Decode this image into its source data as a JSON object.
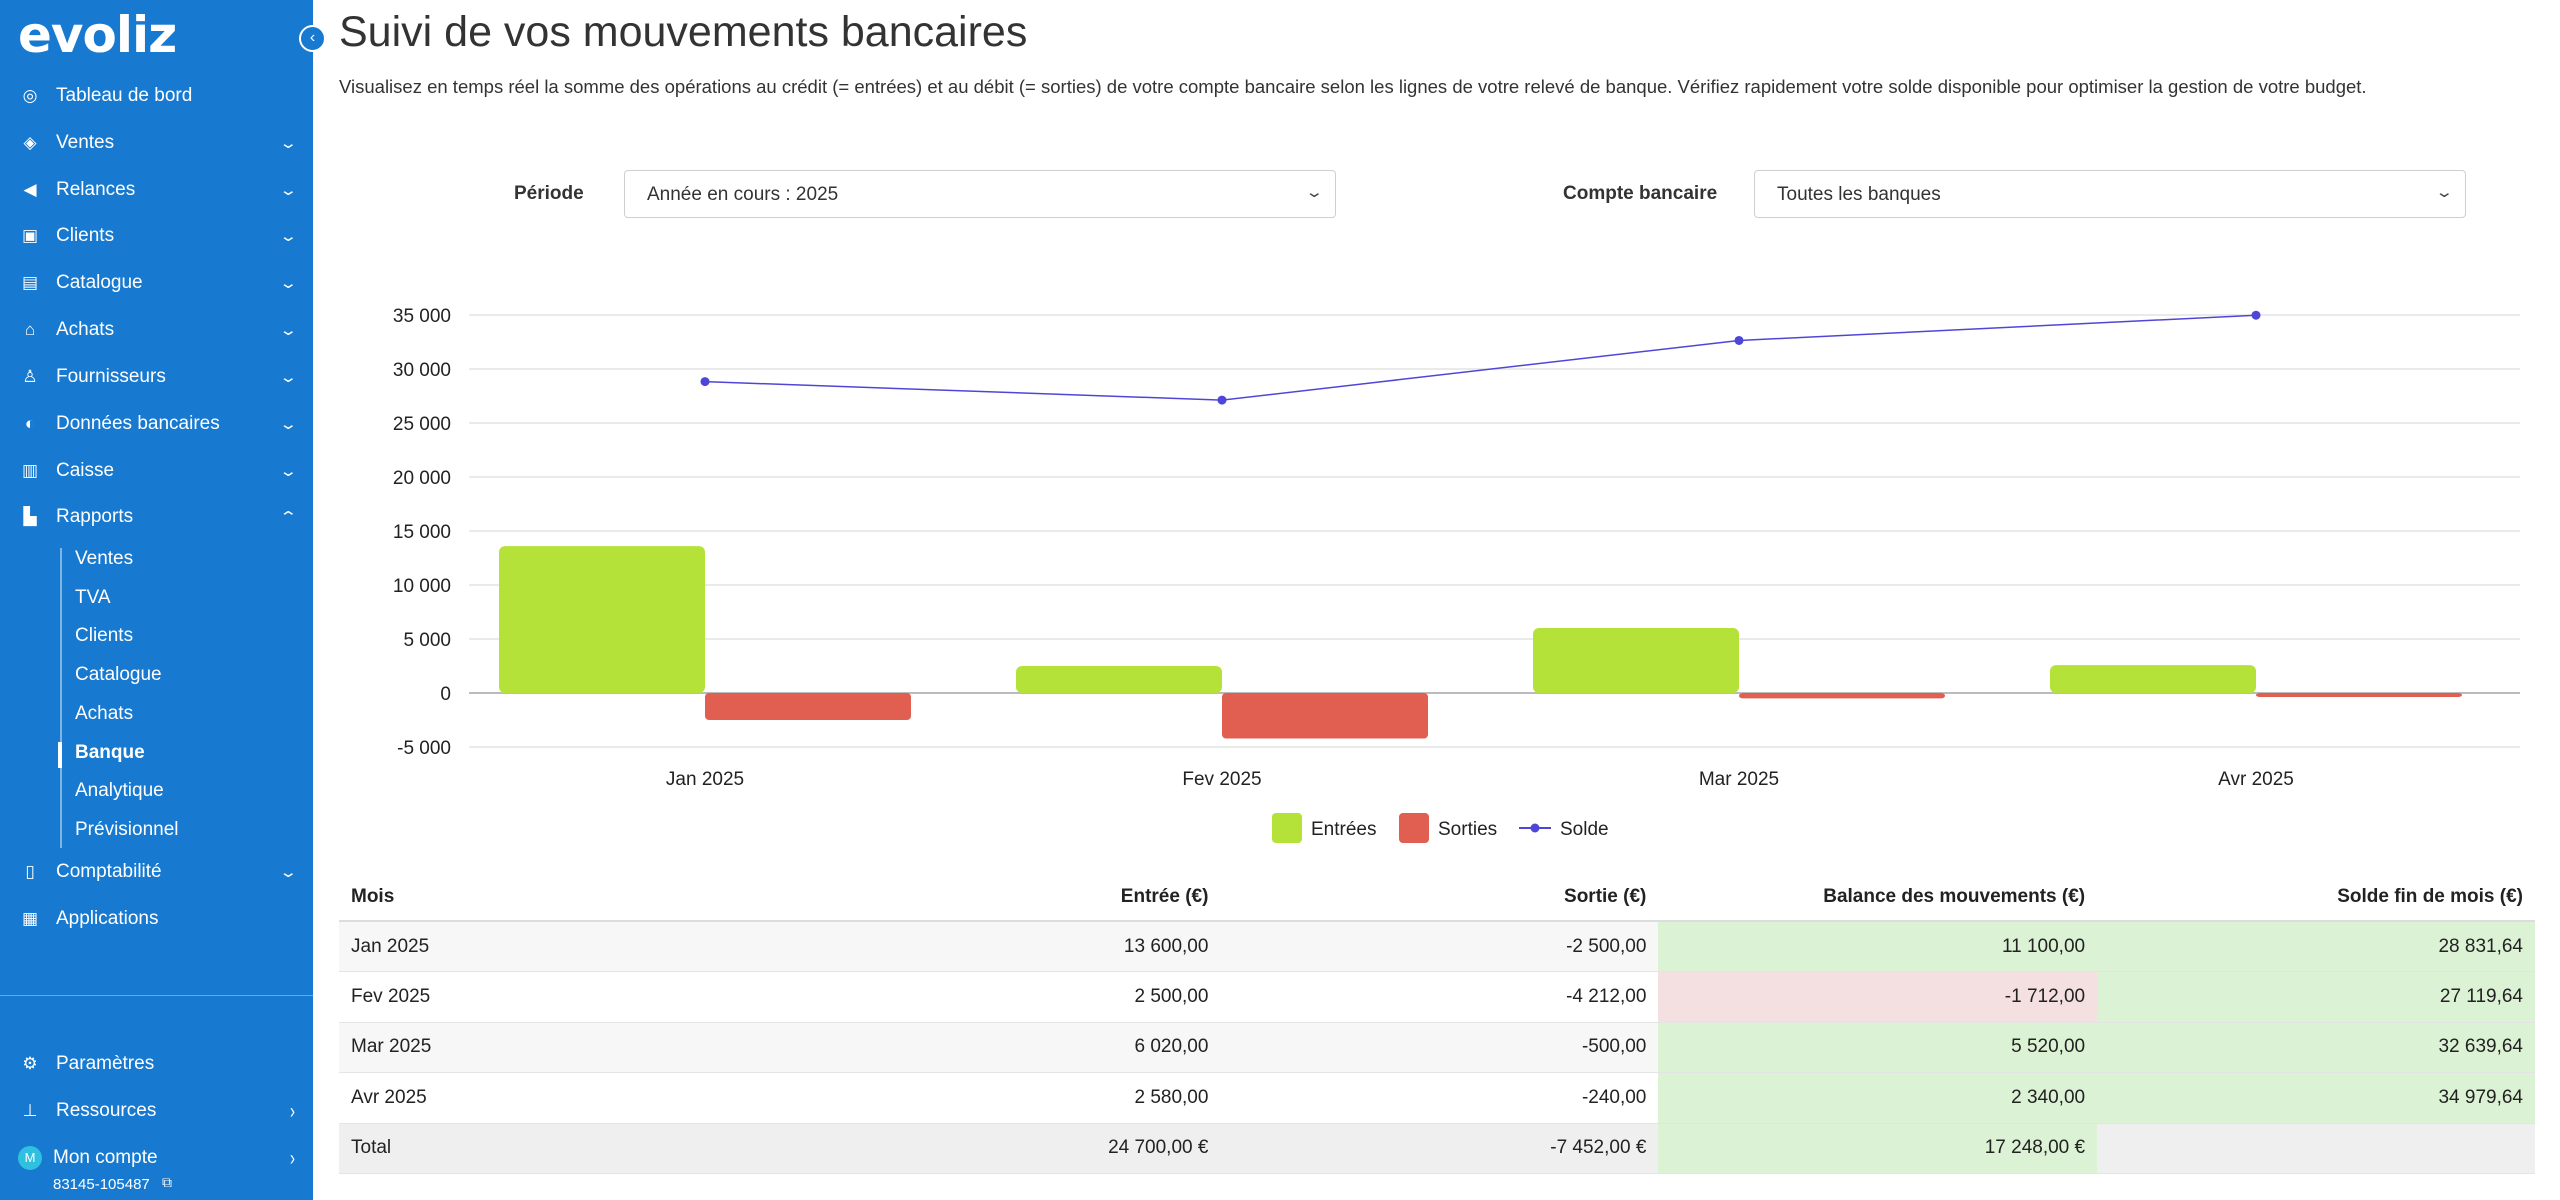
{
  "app": {
    "logo": "evoliz"
  },
  "sidebar": {
    "items": [
      {
        "label": "Tableau de bord",
        "icon": "gauge-icon",
        "expandable": false
      },
      {
        "label": "Ventes",
        "icon": "tag-icon",
        "expandable": true
      },
      {
        "label": "Relances",
        "icon": "megaphone-icon",
        "expandable": true
      },
      {
        "label": "Clients",
        "icon": "contact-card-icon",
        "expandable": true
      },
      {
        "label": "Catalogue",
        "icon": "box-icon",
        "expandable": true
      },
      {
        "label": "Achats",
        "icon": "basket-icon",
        "expandable": true
      },
      {
        "label": "Fournisseurs",
        "icon": "supplier-icon",
        "expandable": true
      },
      {
        "label": "Données bancaires",
        "icon": "piggy-bank-icon",
        "expandable": true
      },
      {
        "label": "Caisse",
        "icon": "barcode-icon",
        "expandable": true
      },
      {
        "label": "Rapports",
        "icon": "bar-chart-icon",
        "expandable": true,
        "expanded": true
      }
    ],
    "rapports_sub": [
      "Ventes",
      "TVA",
      "Clients",
      "Catalogue",
      "Achats",
      "Banque",
      "Analytique",
      "Prévisionnel"
    ],
    "active_sub": "Banque",
    "after_items": [
      {
        "label": "Comptabilité",
        "icon": "ledger-icon",
        "expandable": true
      },
      {
        "label": "Applications",
        "icon": "grid-icon",
        "expandable": false
      }
    ],
    "bottom": {
      "parametres": "Paramètres",
      "ressources": "Ressources",
      "mon_compte": "Mon compte",
      "avatar_letter": "M",
      "account_id": "83145-105487"
    }
  },
  "page": {
    "title": "Suivi de vos mouvements bancaires",
    "description": "Visualisez en temps réel la somme des opérations au crédit (= entrées) et au débit (= sorties) de votre compte bancaire selon les lignes de votre relevé de banque. Vérifiez rapidement votre solde disponible pour optimiser la gestion de votre budget."
  },
  "filters": {
    "periode_label": "Période",
    "periode_value": "Année en cours : 2025",
    "compte_label": "Compte bancaire",
    "compte_value": "Toutes les banques"
  },
  "chart_data": {
    "type": "bar",
    "categories": [
      "Jan 2025",
      "Fev 2025",
      "Mar 2025",
      "Avr 2025"
    ],
    "series": [
      {
        "name": "Entrées",
        "kind": "bar",
        "color": "#b5e238",
        "values": [
          13600,
          2500,
          6020,
          2580
        ]
      },
      {
        "name": "Sorties",
        "kind": "bar",
        "color": "#e05f50",
        "values": [
          -2500,
          -4212,
          -500,
          -240
        ]
      },
      {
        "name": "Solde",
        "kind": "line",
        "color": "#4f46d8",
        "values": [
          28831.64,
          27119.64,
          32639.64,
          34979.64
        ]
      }
    ],
    "y_ticks": [
      "35 000",
      "30 000",
      "25 000",
      "20 000",
      "15 000",
      "10 000",
      "5 000",
      "0",
      "-5 000"
    ],
    "ylim": [
      -5000,
      35000
    ],
    "grid": true,
    "legend_position": "bottom"
  },
  "table": {
    "headers": [
      "Mois",
      "Entrée (€)",
      "Sortie (€)",
      "Balance des mouvements (€)",
      "Solde fin de mois (€)"
    ],
    "rows": [
      {
        "mois": "Jan 2025",
        "entree": "13 600,00",
        "sortie": "-2 500,00",
        "balance": "11 100,00",
        "solde": "28 831,64",
        "balance_status": "pos"
      },
      {
        "mois": "Fev 2025",
        "entree": "2 500,00",
        "sortie": "-4 212,00",
        "balance": "-1 712,00",
        "solde": "27 119,64",
        "balance_status": "neg"
      },
      {
        "mois": "Mar 2025",
        "entree": "6 020,00",
        "sortie": "-500,00",
        "balance": "5 520,00",
        "solde": "32 639,64",
        "balance_status": "pos"
      },
      {
        "mois": "Avr 2025",
        "entree": "2 580,00",
        "sortie": "-240,00",
        "balance": "2 340,00",
        "solde": "34 979,64",
        "balance_status": "pos"
      }
    ],
    "total": {
      "label": "Total",
      "entree": "24 700,00 €",
      "sortie": "-7 452,00 €",
      "balance": "17 248,00 €"
    }
  },
  "colors": {
    "sidebar": "#1779cf",
    "entrees": "#b5e238",
    "sorties": "#e05f50",
    "solde": "#4f46d8",
    "positive_cell": "#dcf2d5",
    "negative_cell": "#f4dfe1"
  }
}
